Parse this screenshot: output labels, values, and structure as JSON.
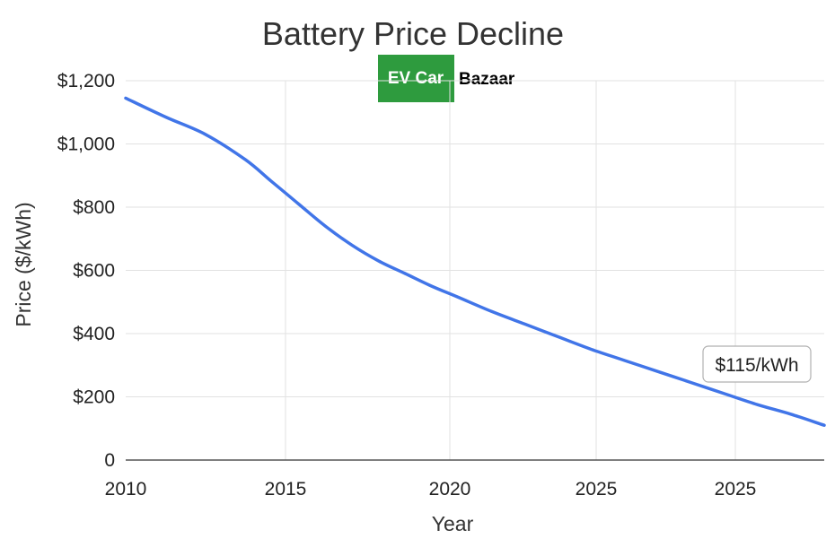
{
  "chart_data": {
    "type": "line",
    "title": "Battery Price Decline",
    "xlabel": "Year",
    "ylabel": "Price ($/kWh)",
    "ylim": [
      0,
      1200
    ],
    "y_ticks": [
      0,
      200,
      400,
      600,
      800,
      1000,
      1200
    ],
    "y_tick_labels": [
      "0",
      "$200",
      "$400",
      "$600",
      "$800",
      "$1,000",
      "$1,200"
    ],
    "x_tick_labels": [
      "2010",
      "2015",
      "2020",
      "2025",
      "2025"
    ],
    "grid": true,
    "series": [
      {
        "color": "#4175e8",
        "points": [
          [
            0,
            1145
          ],
          [
            0.06,
            1085
          ],
          [
            0.12,
            1030
          ],
          [
            0.18,
            950
          ],
          [
            0.22,
            880
          ],
          [
            0.26,
            810
          ],
          [
            0.3,
            740
          ],
          [
            0.34,
            680
          ],
          [
            0.38,
            630
          ],
          [
            0.42,
            590
          ],
          [
            0.46,
            550
          ],
          [
            0.5,
            515
          ],
          [
            0.55,
            470
          ],
          [
            0.6,
            430
          ],
          [
            0.65,
            390
          ],
          [
            0.7,
            350
          ],
          [
            0.75,
            315
          ],
          [
            0.8,
            280
          ],
          [
            0.85,
            245
          ],
          [
            0.9,
            210
          ],
          [
            0.95,
            175
          ],
          [
            1.0,
            145
          ],
          [
            1.05,
            110
          ]
        ]
      }
    ],
    "annotations": [
      {
        "text": "$115/kWh"
      }
    ]
  },
  "logo": {
    "part1": "EV Car",
    "part2": "Bazaar",
    "bg_color": "#2e9b3e"
  }
}
